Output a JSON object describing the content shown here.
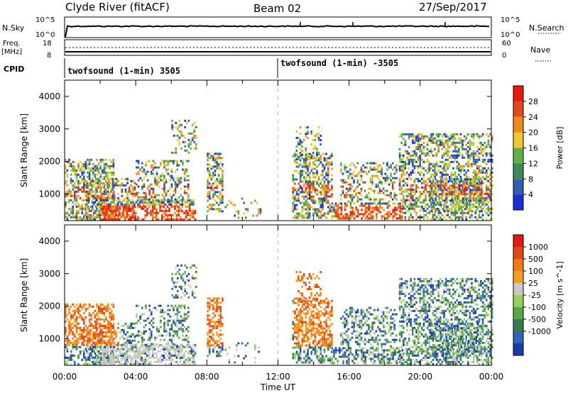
{
  "header": {
    "station": "Clyde River (fitACF)",
    "beam": "Beam 02",
    "date": "27/Sep/2017"
  },
  "sidepanel_left": {
    "nsky_label": "N.Sky",
    "nsky_top": "10^5",
    "nsky_bottom": "10^0",
    "freq_label": "Freq.",
    "freq_unit": "[MHz]",
    "freq_top": "18",
    "freq_bottom": "8",
    "cpid_label": "CPID"
  },
  "sidepanel_right": {
    "nsearch_label": "N.Search",
    "nsearch_top": "10^5",
    "nsearch_bottom": "10^0",
    "nave_label": "Nave",
    "nave_top": "60",
    "nave_bottom": "0"
  },
  "cpid": {
    "left": "twofsound (1-min) 3505",
    "right": "twofsound (1-min) -3505"
  },
  "colors": {
    "power_scale": [
      "#1c2ed6",
      "#2f5fb0",
      "#3a8a5a",
      "#5fb04a",
      "#b8d442",
      "#f0c82c",
      "#f08a1e",
      "#e04a14",
      "#e81a10"
    ],
    "velocity_scale": [
      "#1d3aa8",
      "#2f66b8",
      "#3a7a52",
      "#5aa848",
      "#9ccc5a",
      "#c8c8c8",
      "#f0a020",
      "#ee7a18",
      "#e04818",
      "#e41a10"
    ],
    "background": "#ffffff"
  },
  "chart_data": [
    {
      "type": "heatmap",
      "name": "power_panel",
      "ylabel": "Slant Range [km]",
      "ylim": [
        180,
        4500
      ],
      "yticks": [
        "1000",
        "2000",
        "3000",
        "4000"
      ],
      "xticks": [
        "00:00",
        "04:00",
        "08:00",
        "12:00",
        "16:00",
        "20:00",
        "00:00"
      ],
      "colorbar": {
        "label": "Power [dB]",
        "ticks": [
          "4",
          "8",
          "12",
          "16",
          "20",
          "24",
          "28"
        ]
      }
    },
    {
      "type": "heatmap",
      "name": "velocity_panel",
      "ylabel": "Slant Range [km]",
      "ylim": [
        180,
        4500
      ],
      "yticks": [
        "1000",
        "2000",
        "3000",
        "4000"
      ],
      "xticks": [
        "00:00",
        "04:00",
        "08:00",
        "12:00",
        "16:00",
        "20:00",
        "00:00"
      ],
      "xlabel": "Time UT",
      "colorbar": {
        "label": "Velocity [m s^-1]",
        "ticks": [
          "1000",
          "500",
          "100",
          "25",
          "-25",
          "-100",
          "-500",
          "-1000"
        ]
      }
    }
  ]
}
